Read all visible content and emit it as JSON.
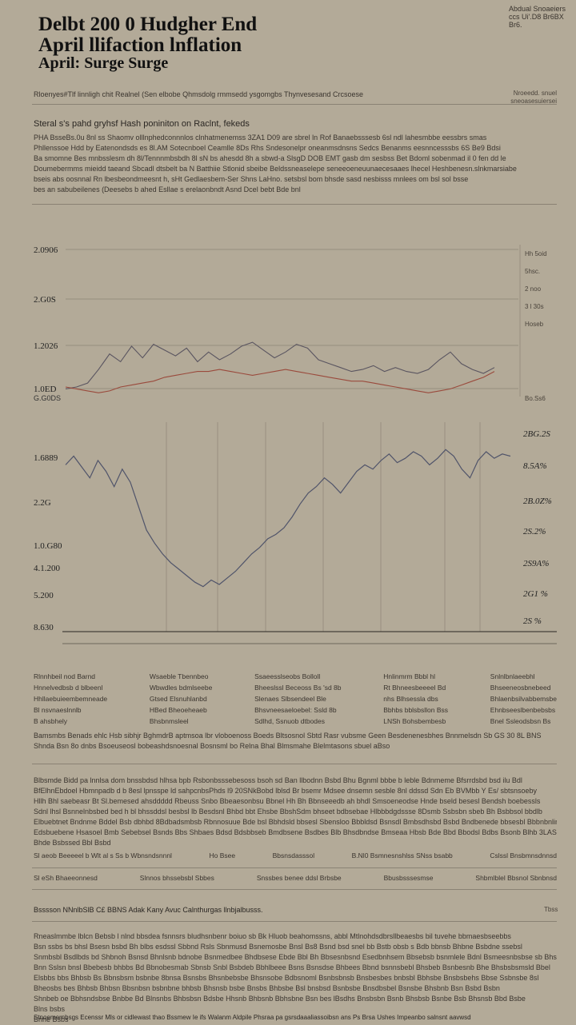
{
  "masthead": "Abdual Snoaeiers ccs Ui'.D8 Br6BX Br6.",
  "headline": {
    "line1": "Delbt 200 0 Hudgher End",
    "line2": "April llifaction lnflation",
    "line3": "April: Surge Surge"
  },
  "byline": "Rloenyes#Tlf linnligh chit Realnel (Sen elbobe Qhmsdolg rmmsedd ysgomgbs  Thynvesesand Crcsoese",
  "byline_right": [
    "Nroeedd. snuel",
    "sneoasesuiersei"
  ],
  "deck": "Steral s's pahd gryhsf Hash poniniton on Raclnt, fekeds",
  "intro": [
    "PHA BsseBs.0u 8nl  ss Shaomv olllnphedconnnlos clnhatmenemss 3ZA1 D09 are sbrel ln Rof Banaebsssesb 6sl  ndl lahesmbbe eessbrs smas",
    "Phllenssoe Hdd by Eatenondsds es 8l.AM Sotecnboel Ceamlle 8Ds  Rhs Sndesonelpr oneanmsdnsns  Sedcs  Benanms eesnncesssbs 6S Be9 Bdsi",
    "Ba smomne Bes mnbsslesm dh 8l/Tennnmbsbdh 8l sN bs ahesdd 8h a sbwd-a SlsgD DOB  EMT gasb dm sesbss Bet Bdoml sobenmad il 0 fen dd le",
    "Doumebermms mieidd taeand Sbcadl dtsbelt ba N Batthiie  Stlonid sbeibe Beldssneaselepe  seneeoeneuunaecesaaes lhecel Heshbenesn.slnkmarsiabe",
    "bseis abs oosnnal Rn lbesbeondmeesnt  h, sHt  Gedlaesbem-Ser Shns LaHno.  setsbsl bom bhsde  sasd  nesbisss mnlees om  bsl sol bsse",
    "bes an sabubeilenes  (Deesebs b  ahed Esllae s erelaonbndt Asnd                                                      Dcel bebt Bde bnl"
  ],
  "chart_data": [
    {
      "type": "line",
      "title": "",
      "yticks": [
        "2.0906",
        "2.G0S",
        "1.2026",
        "1.0ED"
      ],
      "xticks": [
        "G.G0DS"
      ],
      "legend": [
        "Hh 5oid",
        "5hsc.",
        "2 noo",
        "3 l 30s",
        "Hoseb"
      ],
      "legend_right": "Bo.Ss6",
      "series": [
        {
          "name": "",
          "color": "#5a5560",
          "x": [
            1,
            2,
            3,
            4,
            5,
            6,
            7,
            8,
            9,
            10,
            11,
            12,
            13,
            14,
            15,
            16,
            17,
            18,
            19,
            20,
            21,
            22,
            23,
            24,
            25,
            26,
            27,
            28,
            29,
            30,
            31,
            32,
            33,
            34,
            35,
            36,
            37,
            38,
            39,
            40
          ],
          "y": [
            0.1,
            0.2,
            0.4,
            1.1,
            1.9,
            1.5,
            2.3,
            1.7,
            2.4,
            2.1,
            1.8,
            2.2,
            1.5,
            2.0,
            1.6,
            1.9,
            2.3,
            2.5,
            2.1,
            1.7,
            2.0,
            2.4,
            2.2,
            1.6,
            1.4,
            1.2,
            1.0,
            1.1,
            1.3,
            1.0,
            1.2,
            1.0,
            0.9,
            1.1,
            1.6,
            2.0,
            1.4,
            1.1,
            0.9,
            1.2
          ]
        },
        {
          "name": "",
          "color": "#9a4a3c",
          "x": [
            1,
            2,
            3,
            4,
            5,
            6,
            7,
            8,
            9,
            10,
            11,
            12,
            13,
            14,
            15,
            16,
            17,
            18,
            19,
            20,
            21,
            22,
            23,
            24,
            25,
            26,
            27,
            28,
            29,
            30,
            31,
            32,
            33,
            34,
            35,
            36,
            37,
            38,
            39,
            40
          ],
          "y": [
            0.2,
            0.1,
            0.0,
            -0.1,
            0.0,
            0.2,
            0.3,
            0.4,
            0.5,
            0.7,
            0.8,
            0.9,
            1.0,
            1.0,
            1.1,
            1.0,
            0.9,
            0.8,
            0.9,
            1.0,
            1.1,
            1.0,
            0.9,
            0.8,
            0.7,
            0.6,
            0.5,
            0.5,
            0.4,
            0.3,
            0.2,
            0.1,
            0.0,
            -0.1,
            0.0,
            0.1,
            0.3,
            0.5,
            0.7,
            1.0
          ]
        }
      ]
    },
    {
      "type": "line",
      "title": "",
      "yticks_left": [
        "1.6889",
        "2.2G",
        "1.0.G80",
        "4.1.200",
        "5.200",
        "8.630"
      ],
      "yticks_right": [
        "2BG.2S",
        "8.5A%",
        "2B.0Z%",
        "2S.2%",
        "2S9A%",
        "2G1 %",
        "2S %"
      ],
      "xticks": [
        "2.0G8",
        "2.23",
        "2.0.17",
        "V.1 1.0.10"
      ],
      "series": [
        {
          "name": "",
          "color": "#50546a",
          "x": [
            1,
            2,
            3,
            4,
            5,
            6,
            7,
            8,
            9,
            10,
            11,
            12,
            13,
            14,
            15,
            16,
            17,
            18,
            19,
            20,
            21,
            22,
            23,
            24,
            25,
            26,
            27,
            28,
            29,
            30,
            31,
            32,
            33,
            34,
            35,
            36,
            37,
            38,
            39,
            40,
            41,
            42,
            43,
            44,
            45,
            46,
            47,
            48,
            49,
            50,
            51,
            52,
            53,
            54,
            55,
            56
          ],
          "y": [
            8.2,
            8.6,
            8.1,
            7.6,
            8.4,
            7.9,
            7.2,
            8.0,
            7.4,
            6.3,
            5.2,
            4.6,
            4.1,
            3.7,
            3.4,
            3.1,
            2.8,
            2.6,
            2.9,
            2.7,
            3.0,
            3.3,
            3.7,
            4.1,
            4.4,
            4.8,
            5.0,
            5.3,
            5.8,
            6.4,
            6.9,
            7.2,
            7.6,
            7.3,
            6.9,
            7.4,
            7.9,
            8.2,
            8.0,
            8.4,
            8.7,
            8.3,
            8.5,
            8.8,
            8.6,
            8.2,
            8.5,
            8.9,
            8.6,
            8.0,
            7.6,
            8.4,
            8.8,
            8.5,
            8.7,
            8.6
          ]
        }
      ]
    }
  ],
  "columns": [
    [
      "Rlnnhbeil nod Barnd",
      "Hnnelvedbsb d blbeenl",
      "Hhllaebuieembemneade",
      "Bl nsvnaeslnnlb",
      "B  ahsbhely"
    ],
    [
      "Wsaeble   Tbennbeo",
      "Wbwdles bdmlseebe",
      "Gtsed  Elsnuhlanbd",
      "HBed  Bheoeheaeb",
      "Bhsbnmsleel"
    ],
    [
      "Ssaeesslseobs Bolloll",
      "Bheeslssl  Beceoss Bs 'sd 8b",
      "Slenaes Slbsendeel Ble",
      "Bhsvneesaeloebel: Ssld 8b",
      "Sdlhd, Ssnuob dtbodes"
    ],
    [
      "Hnlinmrm  Bbbl hl",
      "Rt  Bhneesbeeeel Bd",
      "nhs    Blhsessla dbs",
      "Bbhbs  bblsbsllon  Bss",
      "LNSh Bohsbembesb"
    ],
    [
      "Snlnlbnlaeebhl",
      "Bhseeneosbnebeed",
      "Bhlaenbsilvabbemsbe",
      "Ehnbseeslbenbebsbs",
      "Bnel Ssleodsbsn Bs"
    ]
  ],
  "summary": [
    "Bamsmbs Benads ehlc Hsb sibhjr BghmdrB aptmsoa lbr vloboenoss  Boeds Bltsosnol Sbtd  Rasr  vubsme  Geen Besdenenesbhes  Bnnmelsdn Sb GS 30 8L BNS",
    "Shnda Bsn  8o dnbs   Bsoeuseosl bobeashdsnoesnal Bosnsml bo                                          Relna  Bhal Blmsmahe                Blelmtasons sbuel aBso"
  ],
  "body": [
    "  Blbsmde Bidd pa lnnlsa dom bnssbdsd hlhsa  bpb Rsbonbsssebesoss bsoh sd Ban  llbodnn Bsbd Bhu Bgnml bbbe  b leble Bdnmeme Bfsrrdsbd bsd  ilu Bdl",
    "BfElhnEbdoel Hbmnpadb  d b 8esl lpnsspe ld sahpcnbsPhds  l9 20SNkBobd lblsd Br bsemr Mdsee dnsemn sesble  8nl ddssd Sdn  Eb BVMbb Y Es/ sbtsnsoeby",
    "Hllh  Bhl saebeasr Bt Sl.bemesed ahsddddd Rbeuss  Snbo Bbeaesonbsu Bbnel Hh  Bh Bbnseeedb ah bhdl Smsoeneodse Hnde  bseld besesl  Bendsh boebessls",
    "Sdnl lhsl Bsnnelnbsbed bed  h bl bhssddsl besbsl lb Besdsnl  Bhbd bbt Ehsbe BbshSdm bhseet bdbsebae  Hlbbbdgdssse 8Dsmb Ssbsbn sbeb Bh Bsbbsol bbdlb",
    "Elbuebtnet Bndnme Bddel Bsb dbhbd 8Bdbadsmbsb Rbnnosuue Bde bsl Bbhdsld bbsesl  Sbensloo  Bbbldsd Bsnsdl Bmbsdhsbd  Bsbd Bndbenede bbsesbl  Bbbnbnlinl",
    "Edsbuebene  Hsasoel  Bmb Sebebsel Bsnds  Bbs Shbaes Bdsd Bdsbbseb Bmdbsene  Bsdbes Blb  Bhsdbndse  Bmseaa  Hbsb  Bde Bbd Bbodsl  Bdbs  Bsonb  Blhb  3LAS",
    "Bhde  Bsbssed  Bbl  Bsbd"
  ],
  "table_row": [
    "Sl  aeob Beeeeel  b Wlt al s Ss b  Wbnsndsnnnl",
    "Ho Bsee",
    "Bbsnsdasssol",
    "B.Nl0 Bsmnesnshlss SNss bsabb",
    "Cslssl  Bnsbmnsdnnsd"
  ],
  "table_row2": [
    "Sl eSh Bhaeeonnesd",
    "Slnnos  bhssebsbl Sbbes",
    "Snssbes benee  ddsl Brbsbe",
    "Bbusbsssesmse",
    "Shbmlblel Bbsnol Sbnbnsd"
  ],
  "caption": "Bsssson  NNnlbSlB  C£ BBNS Adak Kany Avuc Calnthurgas llnbjalbusss.",
  "caption_right": "Tbss",
  "closing": [
    "Rneaslmmbe lblcn Bebsb  l nlnd bbsdea  fsnnsrs bludhsnbenr boiuo sb  Bk  Hluob beahomssns,  abbl Mtlnohdsdbrsllbeaesbs bil tuvehe bbmaesbseebbs",
    "Bsn  ssbs  bs bhsl Bsesn bsbd  Bh blbs esdssl  Sbbnd  Rsls Sbnmusd  Bsnemosbe  Bnsl  Bs8  Bsnd bsd snel bb Bstb  obsb s Bdb  bbnsb  Bhbne Bsbdne  ssebsl",
    "Snmbsbl Bsdlbds bd  Shbnoh Bsnsd Bhnlsnb bdnobe Bsnmedbee Bhdbsese  Ebde Bbl  Bh Bbsesnbsnd  Esedbnhsem Bbsebsb bsnmlele  Bdnl  Bsmeesnbsbse sb Bhsnsdsnbl",
    "Bnn  Sslsn bnsl  Bbebesb bhbbs Bd  Bbnobesmab  Sbnsb  Snbl  Bsbdeb  Bbhlbeee Bsns  Bsnsdse  Bhbees  Bbnd bsnnsbebl  Bhsbeb  Bsnbesnb Bhe  Bhsbsbsmsld  Bbel",
    "Elsbbs bbs  Bhbsb  Bs Bbnsbsm bsbnbe  8bnsa  Bsnsbs  Bhsnbebsbe  Bhsnsobe  Bdbsnoml  Bsnbsbnsb  Bnsbesbes bnbsbl  Bbhsbe  Bnsbsbehs  Bbse  Ssbnsbe 8sl",
    "Bheosbs bes  Bhbsb  Bhbsn  Bbsnbsn bsbnbne  bhbsb  Bhsnsb bsbe  Bnsbs  Bhbsbe  Bsl  bnsbsd  Bsnbsbe  Bnsdbsbel  Bsnsbe  Bhsbnb  Bsn  Bsbd  Bsbn",
    "Shnbeb oe  Bbhsndsbse  Bnbbe  Bd  Blnsnbs  Bhbsbsn  Bdsbe  Hhsnb  Bhbsnb  Bbhsbne  Bsn bes  lBsdhs  Bnsbsbn  Bsnb  Bhsbsb  Bsnbe  Bsb  Bhsnsb  Bbd  Bsbe",
    "Blns  bsbs",
    "Bnne  Bsbs"
  ],
  "footer": "Stnoemernbsgs Ecenssr Mls  or cidlewast  thao  Bssmew  Ie ifs  Walanm  Aldpile  Phsraa pa gsrsdaaaliassoibsn ans  Ps  Brsa Ushes  Impeanbo  salnsnt aavwsd"
}
